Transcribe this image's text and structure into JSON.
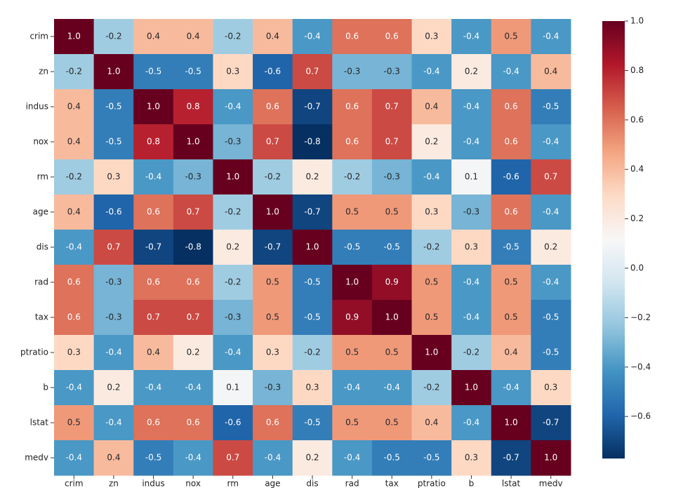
{
  "chart_data": {
    "type": "heatmap",
    "colormap": "RdBu_r",
    "x_categories": [
      "crim",
      "zn",
      "indus",
      "nox",
      "rm",
      "age",
      "dis",
      "rad",
      "tax",
      "ptratio",
      "b",
      "lstat",
      "medv"
    ],
    "y_categories": [
      "crim",
      "zn",
      "indus",
      "nox",
      "rm",
      "age",
      "dis",
      "rad",
      "tax",
      "ptratio",
      "b",
      "lstat",
      "medv"
    ],
    "values": [
      [
        1.0,
        -0.2,
        0.4,
        0.4,
        -0.2,
        0.4,
        -0.4,
        0.6,
        0.6,
        0.3,
        -0.4,
        0.5,
        -0.4
      ],
      [
        -0.2,
        1.0,
        -0.5,
        -0.5,
        0.3,
        -0.6,
        0.7,
        -0.3,
        -0.3,
        -0.4,
        0.2,
        -0.4,
        0.4
      ],
      [
        0.4,
        -0.5,
        1.0,
        0.8,
        -0.4,
        0.6,
        -0.7,
        0.6,
        0.7,
        0.4,
        -0.4,
        0.6,
        -0.5
      ],
      [
        0.4,
        -0.5,
        0.8,
        1.0,
        -0.3,
        0.7,
        -0.8,
        0.6,
        0.7,
        0.2,
        -0.4,
        0.6,
        -0.4
      ],
      [
        -0.2,
        0.3,
        -0.4,
        -0.3,
        1.0,
        -0.2,
        0.2,
        -0.2,
        -0.3,
        -0.4,
        0.1,
        -0.6,
        0.7
      ],
      [
        0.4,
        -0.6,
        0.6,
        0.7,
        -0.2,
        1.0,
        -0.7,
        0.5,
        0.5,
        0.3,
        -0.3,
        0.6,
        -0.4
      ],
      [
        -0.4,
        0.7,
        -0.7,
        -0.8,
        0.2,
        -0.7,
        1.0,
        -0.5,
        -0.5,
        -0.2,
        0.3,
        -0.5,
        0.2
      ],
      [
        0.6,
        -0.3,
        0.6,
        0.6,
        -0.2,
        0.5,
        -0.5,
        1.0,
        0.9,
        0.5,
        -0.4,
        0.5,
        -0.4
      ],
      [
        0.6,
        -0.3,
        0.7,
        0.7,
        -0.3,
        0.5,
        -0.5,
        0.9,
        1.0,
        0.5,
        -0.4,
        0.5,
        -0.5
      ],
      [
        0.3,
        -0.4,
        0.4,
        0.2,
        -0.4,
        0.3,
        -0.2,
        0.5,
        0.5,
        1.0,
        -0.2,
        0.4,
        -0.5
      ],
      [
        -0.4,
        0.2,
        -0.4,
        -0.4,
        0.1,
        -0.3,
        0.3,
        -0.4,
        -0.4,
        -0.2,
        1.0,
        -0.4,
        0.3
      ],
      [
        0.5,
        -0.4,
        0.6,
        0.6,
        -0.6,
        0.6,
        -0.5,
        0.5,
        0.5,
        0.4,
        -0.4,
        1.0,
        -0.7
      ],
      [
        -0.4,
        0.4,
        -0.5,
        -0.4,
        0.7,
        -0.4,
        0.2,
        -0.4,
        -0.5,
        -0.5,
        0.3,
        -0.7,
        1.0
      ]
    ],
    "value_labels": [
      [
        "1.0",
        "-0.2",
        "0.4",
        "0.4",
        "-0.2",
        "0.4",
        "-0.4",
        "0.6",
        "0.6",
        "0.3",
        "-0.4",
        "0.5",
        "-0.4"
      ],
      [
        "-0.2",
        "1.0",
        "-0.5",
        "-0.5",
        "0.3",
        "-0.6",
        "0.7",
        "-0.3",
        "-0.3",
        "-0.4",
        "0.2",
        "-0.4",
        "0.4"
      ],
      [
        "0.4",
        "-0.5",
        "1.0",
        "0.8",
        "-0.4",
        "0.6",
        "-0.7",
        "0.6",
        "0.7",
        "0.4",
        "-0.4",
        "0.6",
        "-0.5"
      ],
      [
        "0.4",
        "-0.5",
        "0.8",
        "1.0",
        "-0.3",
        "0.7",
        "-0.8",
        "0.6",
        "0.7",
        "0.2",
        "-0.4",
        "0.6",
        "-0.4"
      ],
      [
        "-0.2",
        "0.3",
        "-0.4",
        "-0.3",
        "1.0",
        "-0.2",
        "0.2",
        "-0.2",
        "-0.3",
        "-0.4",
        "0.1",
        "-0.6",
        "0.7"
      ],
      [
        "0.4",
        "-0.6",
        "0.6",
        "0.7",
        "-0.2",
        "1.0",
        "-0.7",
        "0.5",
        "0.5",
        "0.3",
        "-0.3",
        "0.6",
        "-0.4"
      ],
      [
        "-0.4",
        "0.7",
        "-0.7",
        "-0.8",
        "0.2",
        "-0.7",
        "1.0",
        "-0.5",
        "-0.5",
        "-0.2",
        "0.3",
        "-0.5",
        "0.2"
      ],
      [
        "0.6",
        "-0.3",
        "0.6",
        "0.6",
        "-0.2",
        "0.5",
        "-0.5",
        "1.0",
        "0.9",
        "0.5",
        "-0.4",
        "0.5",
        "-0.4"
      ],
      [
        "0.6",
        "-0.3",
        "0.7",
        "0.7",
        "-0.3",
        "0.5",
        "-0.5",
        "0.9",
        "1.0",
        "0.5",
        "-0.4",
        "0.5",
        "-0.5"
      ],
      [
        "0.3",
        "-0.4",
        "0.4",
        "0.2",
        "-0.4",
        "0.3",
        "-0.2",
        "0.5",
        "0.5",
        "1.0",
        "-0.2",
        "0.4",
        "-0.5"
      ],
      [
        "-0.4",
        "0.2",
        "-0.4",
        "-0.4",
        "0.1",
        "-0.3",
        "0.3",
        "-0.4",
        "-0.4",
        "-0.2",
        "1.0",
        "-0.4",
        "0.3"
      ],
      [
        "0.5",
        "-0.4",
        "0.6",
        "0.6",
        "-0.6",
        "0.6",
        "-0.5",
        "0.5",
        "0.5",
        "0.4",
        "-0.4",
        "1.0",
        "-0.7"
      ],
      [
        "-0.4",
        "0.4",
        "-0.5",
        "-0.4",
        "0.7",
        "-0.4",
        "0.2",
        "-0.4",
        "-0.5",
        "-0.5",
        "0.3",
        "-0.7",
        "1.0"
      ]
    ],
    "zlim": [
      -0.77,
      1.0
    ],
    "zticks": [
      {
        "value": 1.0,
        "label": "1.0"
      },
      {
        "value": 0.8,
        "label": "0.8"
      },
      {
        "value": 0.6,
        "label": "0.6"
      },
      {
        "value": 0.4,
        "label": "0.4"
      },
      {
        "value": 0.2,
        "label": "0.2"
      },
      {
        "value": 0.0,
        "label": "0.0"
      },
      {
        "value": -0.2,
        "label": "−0.2"
      },
      {
        "value": -0.4,
        "label": "−0.4"
      },
      {
        "value": -0.6,
        "label": "−0.6"
      }
    ]
  }
}
